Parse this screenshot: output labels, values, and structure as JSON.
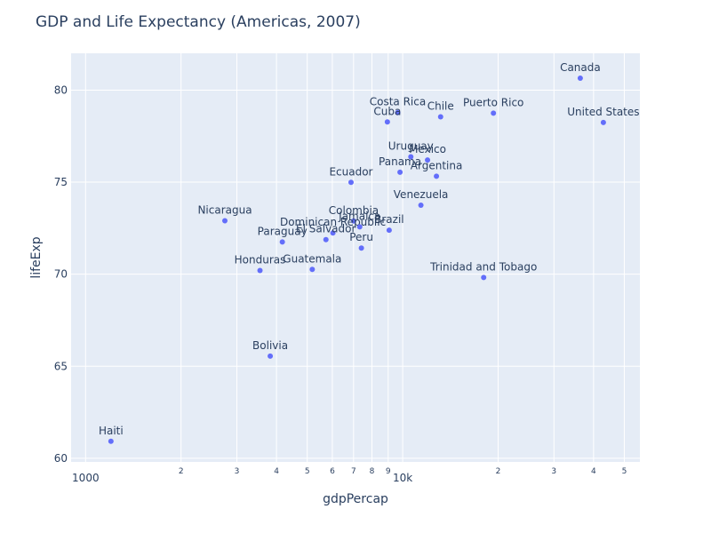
{
  "chart_data": {
    "type": "scatter",
    "title": "GDP and Life Expectancy (Americas, 2007)",
    "xlabel": "gdpPercap",
    "ylabel": "lifeExp",
    "x_scale": "log",
    "xlim": [
      900,
      56000
    ],
    "ylim": [
      59.8,
      82
    ],
    "grid": true,
    "x_ticks_major": [
      {
        "value": 1000,
        "label": "1000"
      },
      {
        "value": 10000,
        "label": "10k"
      }
    ],
    "x_ticks_minor": [
      {
        "value": 2000,
        "label": "2"
      },
      {
        "value": 3000,
        "label": "3"
      },
      {
        "value": 4000,
        "label": "4"
      },
      {
        "value": 5000,
        "label": "5"
      },
      {
        "value": 6000,
        "label": "6"
      },
      {
        "value": 7000,
        "label": "7"
      },
      {
        "value": 8000,
        "label": "8"
      },
      {
        "value": 9000,
        "label": "9"
      },
      {
        "value": 20000,
        "label": "2"
      },
      {
        "value": 30000,
        "label": "3"
      },
      {
        "value": 40000,
        "label": "4"
      },
      {
        "value": 50000,
        "label": "5"
      }
    ],
    "y_ticks": [
      {
        "value": 60,
        "label": "60"
      },
      {
        "value": 65,
        "label": "65"
      },
      {
        "value": 70,
        "label": "70"
      },
      {
        "value": 75,
        "label": "75"
      },
      {
        "value": 80,
        "label": "80"
      }
    ],
    "marker_color": "#636efa",
    "plot_bg": "#e5ecf6",
    "points": [
      {
        "label": "Argentina",
        "x": 12779,
        "y": 75.32
      },
      {
        "label": "Bolivia",
        "x": 3822,
        "y": 65.55
      },
      {
        "label": "Brazil",
        "x": 9066,
        "y": 72.39
      },
      {
        "label": "Canada",
        "x": 36319,
        "y": 80.65
      },
      {
        "label": "Chile",
        "x": 13172,
        "y": 78.55
      },
      {
        "label": "Colombia",
        "x": 7007,
        "y": 72.89
      },
      {
        "label": "Costa Rica",
        "x": 9645,
        "y": 78.78
      },
      {
        "label": "Cuba",
        "x": 8948,
        "y": 78.27
      },
      {
        "label": "Dominican Republic",
        "x": 6025,
        "y": 72.24
      },
      {
        "label": "Ecuador",
        "x": 6873,
        "y": 74.99
      },
      {
        "label": "El Salvador",
        "x": 5728,
        "y": 71.88
      },
      {
        "label": "Guatemala",
        "x": 5186,
        "y": 70.26
      },
      {
        "label": "Haiti",
        "x": 1202,
        "y": 60.92
      },
      {
        "label": "Honduras",
        "x": 3548,
        "y": 70.2
      },
      {
        "label": "Jamaica",
        "x": 7321,
        "y": 72.57
      },
      {
        "label": "Mexico",
        "x": 11978,
        "y": 76.2
      },
      {
        "label": "Nicaragua",
        "x": 2749,
        "y": 72.9
      },
      {
        "label": "Panama",
        "x": 9809,
        "y": 75.54
      },
      {
        "label": "Paraguay",
        "x": 4173,
        "y": 71.75
      },
      {
        "label": "Peru",
        "x": 7409,
        "y": 71.42
      },
      {
        "label": "Puerto Rico",
        "x": 19329,
        "y": 78.75
      },
      {
        "label": "Trinidad and Tobago",
        "x": 18009,
        "y": 69.82
      },
      {
        "label": "United States",
        "x": 42952,
        "y": 78.24
      },
      {
        "label": "Uruguay",
        "x": 10611,
        "y": 76.38
      },
      {
        "label": "Venezuela",
        "x": 11416,
        "y": 73.75
      }
    ]
  }
}
